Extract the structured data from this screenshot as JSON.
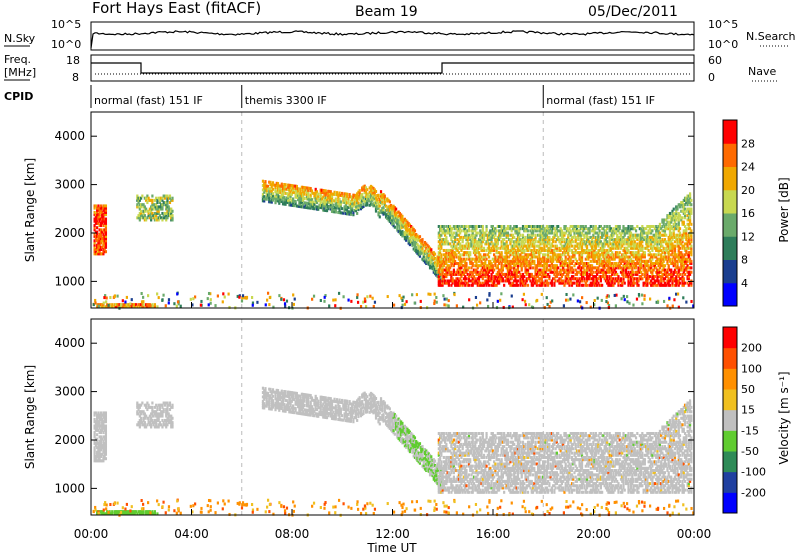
{
  "header": {
    "station": "Fort Hays East (fitACF)",
    "beam": "Beam 19",
    "date": "05/Dec/2011"
  },
  "side_labels": {
    "nsky": "N.Sky",
    "nsearch": "N.Search",
    "freq_line1": "Freq.",
    "freq_line2": "[MHz]",
    "nave": "Nave",
    "cpid": "CPID"
  },
  "noise_axis": {
    "left_ticks": [
      "10^5",
      "10^0"
    ],
    "right_ticks": [
      "10^5",
      "10^0"
    ]
  },
  "freq_axis": {
    "left_ticks": [
      "18",
      "8"
    ],
    "right_ticks": [
      "60",
      "0"
    ]
  },
  "cpid_segments": [
    {
      "label": "normal (fast) 151 IF",
      "start_h": 0,
      "end_h": 6
    },
    {
      "label": "themis 3300 IF",
      "start_h": 6,
      "end_h": 18
    },
    {
      "label": "normal (fast) 151 IF",
      "start_h": 18,
      "end_h": 24
    }
  ],
  "chart_data": [
    {
      "type": "heatmap",
      "name": "power",
      "xlabel": "",
      "ylabel": "Slant Range [km]",
      "xlim": [
        0,
        24
      ],
      "ylim": [
        450,
        4500
      ],
      "yticks": [
        "1000",
        "2000",
        "3000",
        "4000"
      ],
      "colorbar_label": "Power [dB]",
      "colorbar_ticks": [
        "4",
        "8",
        "12",
        "16",
        "20",
        "24",
        "28"
      ],
      "colorbar_colors": [
        "#0000ff",
        "#1a3e8f",
        "#2e7d5a",
        "#6aaa6a",
        "#c8d850",
        "#f0a800",
        "#ff6a00",
        "#ff0000"
      ]
    },
    {
      "type": "heatmap",
      "name": "velocity",
      "xlabel": "Time UT",
      "ylabel": "Slant Range [km]",
      "xlim": [
        0,
        24
      ],
      "ylim": [
        450,
        4500
      ],
      "xticks": [
        "00:00",
        "04:00",
        "08:00",
        "12:00",
        "16:00",
        "20:00",
        "00:00"
      ],
      "yticks": [
        "1000",
        "2000",
        "3000",
        "4000"
      ],
      "colorbar_label": "Velocity [m s⁻¹]",
      "colorbar_ticks": [
        "200",
        "100",
        "50",
        "15",
        "-15",
        "-50",
        "-100",
        "-200"
      ],
      "colorbar_colors": [
        "#0000ff",
        "#2040a0",
        "#2e8b57",
        "#60cc30",
        "#c0c0c0",
        "#f0c020",
        "#ff9000",
        "#ff5000",
        "#ff0000"
      ]
    }
  ]
}
